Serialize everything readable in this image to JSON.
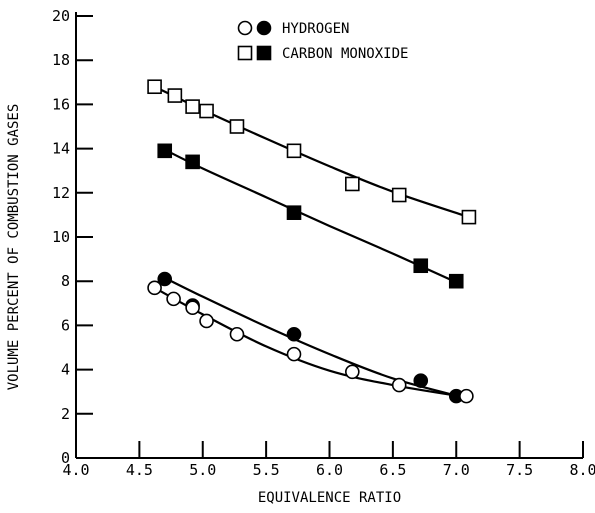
{
  "chart_data": {
    "type": "scatter",
    "title": "",
    "xlabel": "EQUIVALENCE RATIO",
    "ylabel": "VOLUME PERCENT OF COMBUSTION GASES",
    "xlim": [
      4.0,
      8.0
    ],
    "ylim": [
      0,
      20
    ],
    "xticks": [
      "4.0",
      "4.5",
      "5.0",
      "5.5",
      "6.0",
      "6.5",
      "7.0",
      "7.5",
      "8.0"
    ],
    "yticks": [
      "0",
      "2",
      "4",
      "6",
      "8",
      "10",
      "12",
      "14",
      "16",
      "18",
      "20"
    ],
    "grid": false,
    "legend_position": "top-center",
    "legend": [
      {
        "label": "HYDROGEN",
        "markers": [
          "circle-open",
          "circle-filled"
        ]
      },
      {
        "label": "CARBON MONOXIDE",
        "markers": [
          "square-open",
          "square-filled"
        ]
      }
    ],
    "series": [
      {
        "marker": "square-open",
        "x": [
          4.62,
          4.78,
          4.92,
          5.03,
          5.27,
          5.72,
          6.18,
          6.55,
          7.1
        ],
        "y": [
          16.8,
          16.4,
          15.9,
          15.7,
          15.0,
          13.9,
          12.4,
          11.9,
          10.9
        ]
      },
      {
        "marker": "square-filled",
        "x": [
          4.7,
          4.92,
          5.72,
          6.72,
          7.0
        ],
        "y": [
          13.9,
          13.4,
          11.1,
          8.7,
          8.0
        ]
      },
      {
        "marker": "circle-filled",
        "x": [
          4.7,
          4.92,
          5.72,
          6.72,
          7.0
        ],
        "y": [
          8.1,
          6.9,
          5.6,
          3.5,
          2.8
        ]
      },
      {
        "marker": "circle-open",
        "x": [
          4.62,
          4.77,
          4.92,
          5.03,
          5.27,
          5.72,
          6.18,
          6.55,
          7.08
        ],
        "y": [
          7.7,
          7.2,
          6.8,
          6.2,
          5.6,
          4.7,
          3.9,
          3.3,
          2.8
        ]
      }
    ],
    "fit_curves": [
      {
        "for": "square-open",
        "x": [
          4.62,
          5.0,
          5.5,
          6.0,
          6.5,
          7.1
        ],
        "y": [
          16.8,
          15.75,
          14.45,
          13.2,
          12.05,
          10.9
        ]
      },
      {
        "for": "square-filled",
        "x": [
          4.7,
          5.0,
          5.5,
          6.0,
          6.5,
          7.0
        ],
        "y": [
          13.95,
          13.1,
          11.8,
          10.5,
          9.25,
          7.95
        ]
      },
      {
        "for": "circle-filled",
        "x": [
          4.7,
          5.0,
          5.5,
          6.0,
          6.5,
          7.05
        ],
        "y": [
          8.15,
          7.3,
          5.95,
          4.7,
          3.6,
          2.75
        ]
      },
      {
        "for": "circle-open",
        "x": [
          4.62,
          5.0,
          5.5,
          6.0,
          6.5,
          7.08
        ],
        "y": [
          7.7,
          6.5,
          5.05,
          3.95,
          3.3,
          2.75
        ]
      }
    ]
  }
}
